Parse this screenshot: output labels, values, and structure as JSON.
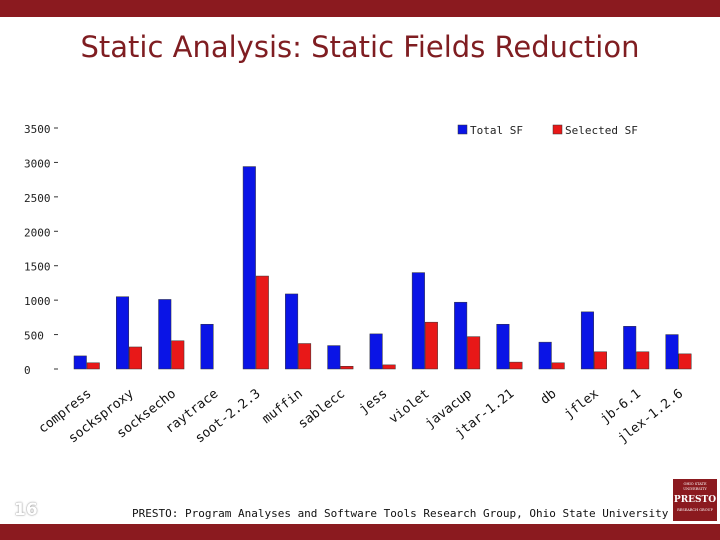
{
  "slide": {
    "title": "Static Analysis: Static Fields Reduction",
    "footer": "PRESTO: Program Analyses and Software Tools Research Group, Ohio State University",
    "slide_number": "16",
    "logo": {
      "line1": "OHIO STATE UNIVERSITY",
      "name": "PRESTO",
      "line3": "RESEARCH GROUP"
    }
  },
  "colors": {
    "accent": "#8b1a1f",
    "total": "#0a14e6",
    "selected": "#e81818"
  },
  "chart_data": {
    "type": "bar",
    "title": "",
    "xlabel": "",
    "ylabel": "",
    "ylim": [
      0,
      3500
    ],
    "yticks": [
      0,
      500,
      1000,
      1500,
      2000,
      2500,
      3000,
      3500
    ],
    "categories": [
      "compress",
      "socksproxy",
      "socksecho",
      "raytrace",
      "soot-2.2.3",
      "muffin",
      "sablecc",
      "jess",
      "violet",
      "javacup",
      "jtar-1.21",
      "db",
      "jflex",
      "jb-6.1",
      "jlex-1.2.6"
    ],
    "series": [
      {
        "name": "Total SF",
        "values": [
          190,
          1050,
          1010,
          650,
          2940,
          1090,
          340,
          510,
          1400,
          970,
          650,
          390,
          830,
          620,
          500
        ]
      },
      {
        "name": "Selected SF",
        "values": [
          90,
          320,
          410,
          0,
          1350,
          370,
          40,
          60,
          680,
          470,
          100,
          90,
          250,
          250,
          220
        ]
      }
    ],
    "legend_position": "top-right",
    "grid": false
  }
}
